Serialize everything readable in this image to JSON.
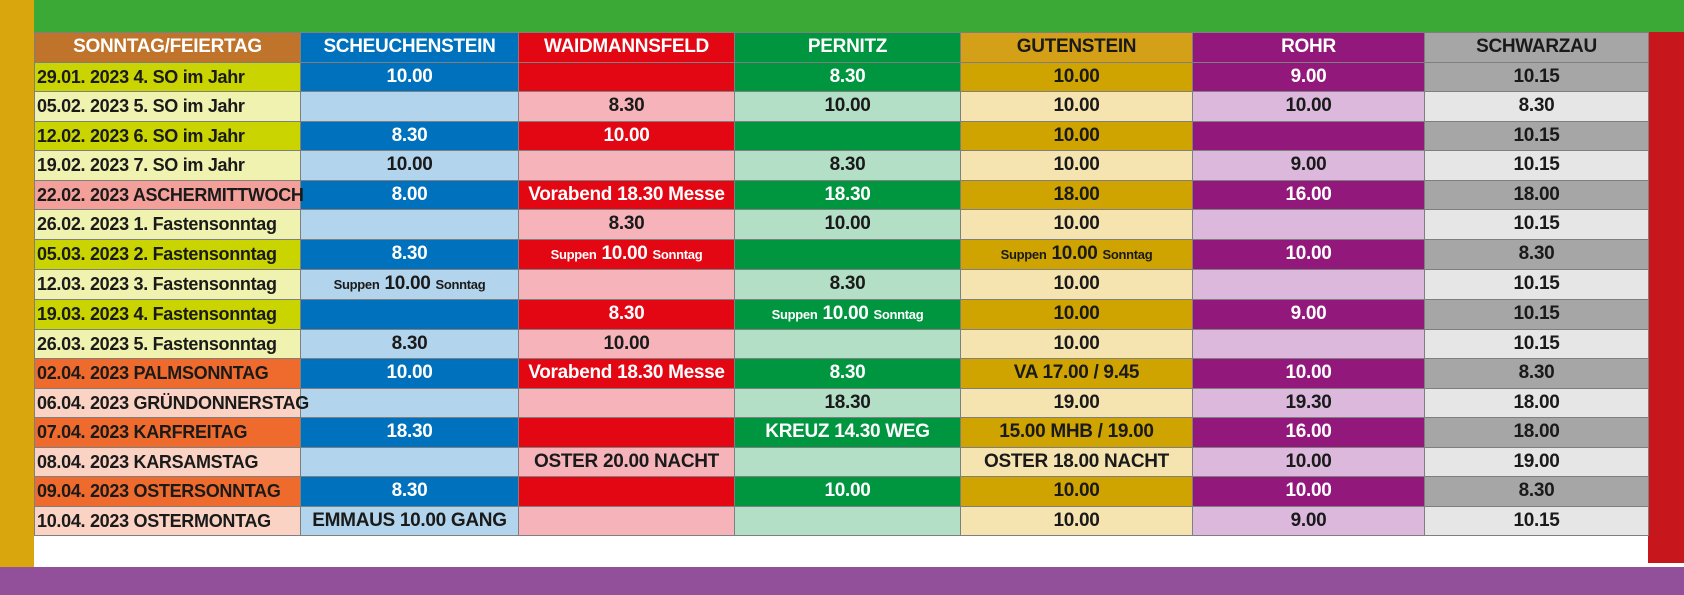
{
  "columns": [
    "SONNTAG/FEIERTAG",
    "SCHEUCHENSTEIN",
    "WAIDMANNSFELD",
    "PERNITZ",
    "GUTENSTEIN",
    "ROHR",
    "SCHWARZAU"
  ],
  "colors": {
    "header": [
      "#c0732b",
      "#0071bc",
      "#e30613",
      "#009640",
      "#d4a017",
      "#93187c",
      "#a6a6a6"
    ],
    "strong": [
      "",
      "#0071bc",
      "#e30613",
      "#009640",
      "#cfa300",
      "#93187c",
      "#a6a6a6"
    ],
    "light": [
      "",
      "#b2d4ec",
      "#f6b4ba",
      "#b3dfc6",
      "#f5e4b0",
      "#dbb8dc",
      "#e6e6e6"
    ],
    "date_lime": "#c9d400",
    "date_lime_light": "#f0f2b0",
    "date_salmon": "#f4a09a",
    "date_orange": "#ef6b2d",
    "date_orange_light": "#fad3c5",
    "frame_top": "#3aa935",
    "frame_left": "#d9a60d",
    "frame_right": "#c8161d",
    "frame_bottom": "#93509a"
  },
  "rows": [
    {
      "date": "29.01. 2023 4. SO im Jahr",
      "dc": "date_lime",
      "shade": "strong",
      "cells": [
        {
          "t": "10.00"
        },
        {
          "t": ""
        },
        {
          "t": "8.30"
        },
        {
          "t": "10.00"
        },
        {
          "t": "9.00"
        },
        {
          "t": "10.15"
        }
      ]
    },
    {
      "date": "05.02. 2023 5. SO im Jahr",
      "dc": "date_lime_light",
      "shade": "light",
      "cells": [
        {
          "t": ""
        },
        {
          "t": "8.30"
        },
        {
          "t": "10.00"
        },
        {
          "t": "10.00"
        },
        {
          "t": "10.00"
        },
        {
          "t": "8.30"
        }
      ]
    },
    {
      "date": "12.02. 2023 6. SO im Jahr",
      "dc": "date_lime",
      "shade": "strong",
      "cells": [
        {
          "t": "8.30"
        },
        {
          "t": "10.00"
        },
        {
          "t": ""
        },
        {
          "t": "10.00"
        },
        {
          "t": ""
        },
        {
          "t": "10.15"
        }
      ]
    },
    {
      "date": "19.02. 2023 7. SO im Jahr",
      "dc": "date_lime_light",
      "shade": "light",
      "cells": [
        {
          "t": "10.00"
        },
        {
          "t": ""
        },
        {
          "t": "8.30"
        },
        {
          "t": "10.00"
        },
        {
          "t": "9.00"
        },
        {
          "t": "10.15"
        }
      ]
    },
    {
      "date": "22.02. 2023 ASCHERMITTWOCH",
      "dc": "date_salmon",
      "shade": "strong",
      "cells": [
        {
          "t": "8.00"
        },
        {
          "t": "Vorabend 18.30 Messe"
        },
        {
          "t": "18.30"
        },
        {
          "t": "18.00"
        },
        {
          "t": "16.00"
        },
        {
          "t": "18.00"
        }
      ]
    },
    {
      "date": "26.02. 2023 1. Fastensonntag",
      "dc": "date_lime_light",
      "shade": "light",
      "cells": [
        {
          "t": ""
        },
        {
          "t": "8.30"
        },
        {
          "t": "10.00"
        },
        {
          "t": "10.00"
        },
        {
          "t": ""
        },
        {
          "t": "10.15"
        }
      ]
    },
    {
      "date": "05.03. 2023 2. Fastensonntag",
      "dc": "date_lime",
      "shade": "strong",
      "cells": [
        {
          "t": "8.30"
        },
        {
          "pre": "Suppen",
          "t": "10.00",
          "post": "Sonntag"
        },
        {
          "t": ""
        },
        {
          "pre": "Suppen",
          "t": "10.00",
          "post": "Sonntag"
        },
        {
          "t": "10.00"
        },
        {
          "t": "8.30"
        }
      ]
    },
    {
      "date": "12.03. 2023 3. Fastensonntag",
      "dc": "date_lime_light",
      "shade": "light",
      "cells": [
        {
          "pre": "Suppen",
          "t": "10.00",
          "post": "Sonntag"
        },
        {
          "t": ""
        },
        {
          "t": "8.30"
        },
        {
          "t": "10.00"
        },
        {
          "t": ""
        },
        {
          "t": "10.15"
        }
      ]
    },
    {
      "date": "19.03. 2023 4. Fastensonntag",
      "dc": "date_lime",
      "shade": "strong",
      "cells": [
        {
          "t": ""
        },
        {
          "t": "8.30"
        },
        {
          "pre": "Suppen",
          "t": "10.00",
          "post": "Sonntag"
        },
        {
          "t": "10.00"
        },
        {
          "t": "9.00"
        },
        {
          "t": "10.15"
        }
      ]
    },
    {
      "date": "26.03. 2023 5. Fastensonntag",
      "dc": "date_lime_light",
      "shade": "light",
      "cells": [
        {
          "t": "8.30"
        },
        {
          "t": "10.00"
        },
        {
          "t": ""
        },
        {
          "t": "10.00"
        },
        {
          "t": ""
        },
        {
          "t": "10.15"
        }
      ]
    },
    {
      "date": "02.04. 2023 PALMSONNTAG",
      "dc": "date_orange",
      "shade": "strong",
      "cells": [
        {
          "t": "10.00"
        },
        {
          "t": "Vorabend 18.30 Messe"
        },
        {
          "t": "8.30"
        },
        {
          "t": "VA 17.00  /  9.45"
        },
        {
          "t": "10.00"
        },
        {
          "t": "8.30"
        }
      ]
    },
    {
      "date": "06.04. 2023 GRÜNDONNERSTAG",
      "dc": "date_orange_light",
      "shade": "light",
      "cells": [
        {
          "t": ""
        },
        {
          "t": ""
        },
        {
          "t": "18.30"
        },
        {
          "t": "19.00"
        },
        {
          "t": "19.30"
        },
        {
          "t": "18.00"
        }
      ]
    },
    {
      "date": "07.04. 2023 KARFREITAG",
      "dc": "date_orange",
      "shade": "strong",
      "cells": [
        {
          "t": "18.30"
        },
        {
          "t": ""
        },
        {
          "t": "KREUZ 14.30 WEG"
        },
        {
          "t": "15.00 MHB   /   19.00"
        },
        {
          "t": "16.00"
        },
        {
          "t": "18.00"
        }
      ]
    },
    {
      "date": "08.04. 2023 KARSAMSTAG",
      "dc": "date_orange_light",
      "shade": "light",
      "cells": [
        {
          "t": ""
        },
        {
          "t": "OSTER 20.00 NACHT"
        },
        {
          "t": ""
        },
        {
          "t": "OSTER 18.00 NACHT"
        },
        {
          "t": "10.00"
        },
        {
          "t": "19.00"
        }
      ]
    },
    {
      "date": "09.04. 2023 OSTERSONNTAG",
      "dc": "date_orange",
      "shade": "strong",
      "cells": [
        {
          "t": "8.30"
        },
        {
          "t": ""
        },
        {
          "t": "10.00"
        },
        {
          "t": "10.00"
        },
        {
          "t": "10.00"
        },
        {
          "t": "8.30"
        }
      ]
    },
    {
      "date": "10.04. 2023 OSTERMONTAG",
      "dc": "date_orange_light",
      "shade": "light",
      "cells": [
        {
          "t": "EMMAUS 10.00 GANG"
        },
        {
          "t": ""
        },
        {
          "t": ""
        },
        {
          "t": "10.00"
        },
        {
          "t": "9.00"
        },
        {
          "t": "10.15"
        }
      ]
    }
  ]
}
